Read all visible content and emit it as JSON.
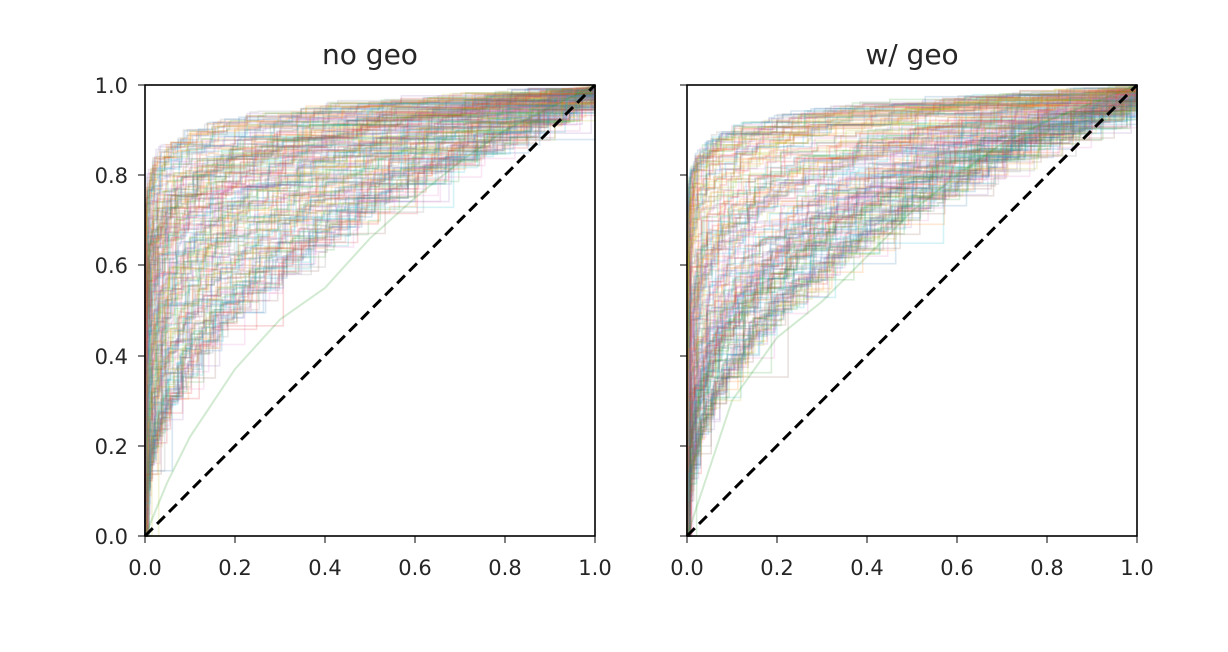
{
  "chart_data": [
    {
      "type": "line",
      "title": "no geo",
      "xlabel": "",
      "ylabel": "",
      "xlim": [
        0.0,
        1.0
      ],
      "ylim": [
        0.0,
        1.0
      ],
      "x_ticks": [
        "0.0",
        "0.2",
        "0.4",
        "0.6",
        "0.8",
        "1.0"
      ],
      "y_ticks": [
        "0.0",
        "0.2",
        "0.4",
        "0.6",
        "0.8",
        "1.0"
      ],
      "grid": false,
      "legend": "none",
      "reference_line": {
        "x": [
          0.0,
          1.0
        ],
        "y": [
          0.0,
          1.0
        ],
        "style": "dashed",
        "color": "#000000"
      },
      "series_description": "many faint overlapping step curves (ROC-like), rising steeply near x=0 and approaching y=1.0",
      "series_count_estimate": 200,
      "series_shape_range": [
        0.04,
        1.3
      ],
      "outlier_series": [
        {
          "x": [
            0.0,
            0.05,
            0.1,
            0.2,
            0.3,
            0.4,
            0.5,
            0.6,
            0.7,
            0.8,
            0.9,
            1.0
          ],
          "y": [
            0.0,
            0.12,
            0.22,
            0.37,
            0.48,
            0.55,
            0.66,
            0.75,
            0.83,
            0.9,
            0.95,
            1.0
          ]
        }
      ],
      "series_alpha": 0.18,
      "palette": [
        "#1f77b4",
        "#ff7f0e",
        "#2ca02c",
        "#d62728",
        "#9467bd",
        "#8c564b",
        "#e377c2",
        "#7f7f7f",
        "#bcbd22",
        "#17becf"
      ]
    },
    {
      "type": "line",
      "title": "w/ geo",
      "xlabel": "",
      "ylabel": "",
      "xlim": [
        0.0,
        1.0
      ],
      "ylim": [
        0.0,
        1.0
      ],
      "x_ticks": [
        "0.0",
        "0.2",
        "0.4",
        "0.6",
        "0.8",
        "1.0"
      ],
      "y_ticks": [],
      "grid": false,
      "legend": "none",
      "reference_line": {
        "x": [
          0.0,
          1.0
        ],
        "y": [
          0.0,
          1.0
        ],
        "style": "dashed",
        "color": "#000000"
      },
      "series_description": "many faint overlapping step curves (ROC-like), rising steeply near x=0 and approaching y=1.0",
      "series_count_estimate": 200,
      "series_shape_range": [
        0.04,
        1.3
      ],
      "outlier_series": [
        {
          "x": [
            0.0,
            0.05,
            0.1,
            0.2,
            0.3,
            0.4,
            0.5,
            0.6,
            0.7,
            0.8,
            0.9,
            1.0
          ],
          "y": [
            0.0,
            0.15,
            0.3,
            0.44,
            0.52,
            0.62,
            0.72,
            0.8,
            0.87,
            0.92,
            0.96,
            1.0
          ]
        }
      ],
      "series_alpha": 0.18,
      "palette": [
        "#1f77b4",
        "#ff7f0e",
        "#2ca02c",
        "#d62728",
        "#9467bd",
        "#8c564b",
        "#e377c2",
        "#7f7f7f",
        "#bcbd22",
        "#17becf"
      ]
    }
  ]
}
